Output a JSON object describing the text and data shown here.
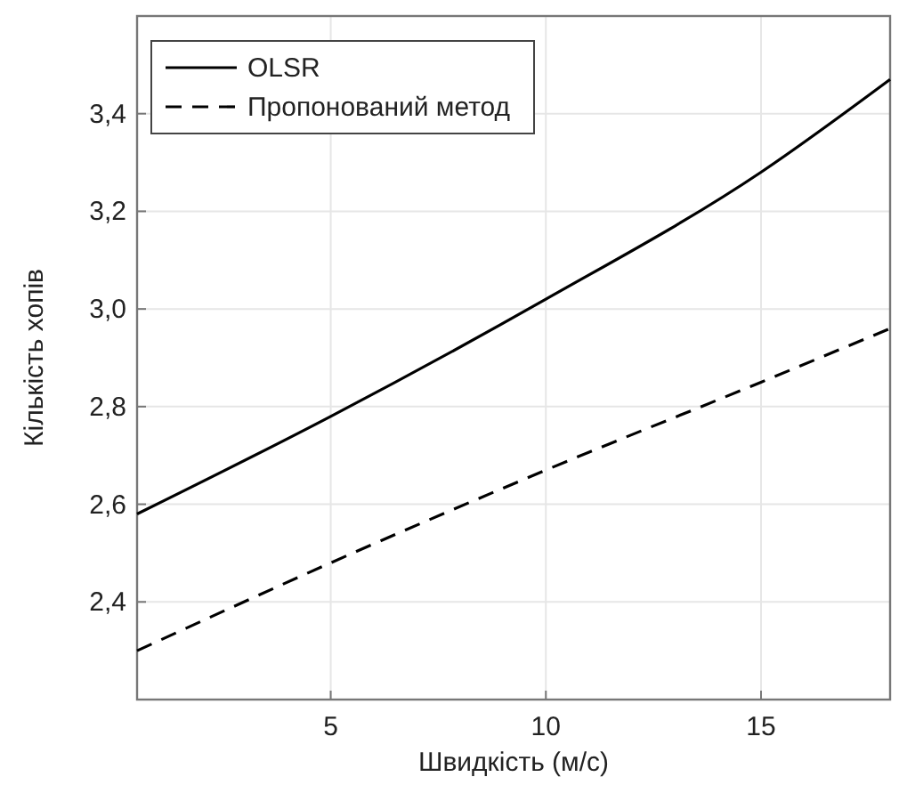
{
  "chart_data": {
    "type": "line",
    "xlabel": "Швидкість (м/с)",
    "ylabel": "Кількість хопів",
    "xlim": [
      0.5,
      18
    ],
    "xticks": [
      5,
      10,
      15
    ],
    "ylim": [
      2.2,
      3.6
    ],
    "yticks": [
      {
        "value": 2.4,
        "label": "2,4"
      },
      {
        "value": 2.6,
        "label": "2,6"
      },
      {
        "value": 2.8,
        "label": "2,8"
      },
      {
        "value": 3.0,
        "label": "3,0"
      },
      {
        "value": 3.2,
        "label": "3,2"
      },
      {
        "value": 3.4,
        "label": "3,4"
      }
    ],
    "grid": true,
    "legend": "top left",
    "marker": "none",
    "series": [
      {
        "name": "OLSR",
        "color": "#000000",
        "line_style": "solid",
        "x": [
          0.5,
          5,
          10,
          15,
          18
        ],
        "values": [
          2.58,
          2.78,
          3.02,
          3.28,
          3.47
        ]
      },
      {
        "name": "Пропонований метод",
        "color": "#000000",
        "line_style": "dashed",
        "x": [
          0.5,
          5,
          10,
          15,
          18
        ],
        "values": [
          2.3,
          2.48,
          2.67,
          2.85,
          2.96
        ]
      }
    ]
  }
}
